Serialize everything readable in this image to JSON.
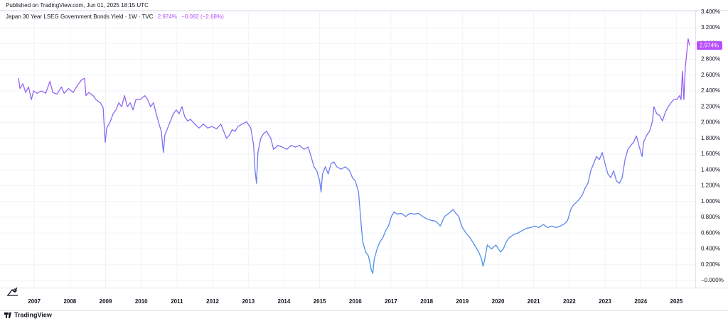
{
  "published": "Published on TradingView.com, Jun 01, 2025 18:15 UTC",
  "brand": "TradingView",
  "chart_data": {
    "type": "line",
    "legend_last": "2.974%",
    "legend_change": "−0.082 (−2.68%)",
    "gradient": [
      "#b84dfb",
      "#3a9ce8"
    ],
    "grid": true,
    "xlim": [
      2006.04,
      2025.53
    ],
    "ylim": [
      -0.09,
      3.425
    ],
    "xticks": [
      2007,
      2008,
      2009,
      2010,
      2011,
      2012,
      2013,
      2014,
      2015,
      2016,
      2017,
      2018,
      2019,
      2020,
      2021,
      2022,
      2023,
      2024,
      2025
    ],
    "yticks": [
      {
        "value": 0,
        "label": "−0.000%"
      },
      {
        "value": 0.2,
        "label": "0.200%"
      },
      {
        "value": 0.4,
        "label": "0.400%"
      },
      {
        "value": 0.6,
        "label": "0.600%"
      },
      {
        "value": 0.8,
        "label": "0.800%"
      },
      {
        "value": 1.0,
        "label": "1.000%"
      },
      {
        "value": 1.2,
        "label": "1.200%"
      },
      {
        "value": 1.4,
        "label": "1.400%"
      },
      {
        "value": 1.6,
        "label": "1.600%"
      },
      {
        "value": 1.8,
        "label": "1.800%"
      },
      {
        "value": 2.0,
        "label": "2.000%"
      },
      {
        "value": 2.2,
        "label": "2.200%"
      },
      {
        "value": 2.4,
        "label": "2.400%"
      },
      {
        "value": 2.6,
        "label": "2.600%"
      },
      {
        "value": 2.8,
        "label": "2.800%"
      },
      {
        "value": 3.0,
        "label": "3.000%"
      },
      {
        "value": 3.2,
        "label": "3.200%"
      },
      {
        "value": 3.4,
        "label": "3.400%"
      }
    ],
    "x": [
      2006.56,
      2006.6,
      2006.68,
      2006.76,
      2006.84,
      2006.92,
      2006.98,
      2007.08,
      2007.2,
      2007.32,
      2007.44,
      2007.52,
      2007.64,
      2007.76,
      2007.84,
      2007.96,
      2008.09,
      2008.21,
      2008.33,
      2008.41,
      2008.45,
      2008.53,
      2008.65,
      2008.73,
      2008.85,
      2008.93,
      2008.97,
      2008.99,
      2009.03,
      2009.13,
      2009.21,
      2009.29,
      2009.37,
      2009.45,
      2009.53,
      2009.61,
      2009.69,
      2009.77,
      2009.85,
      2009.97,
      2010.1,
      2010.18,
      2010.26,
      2010.34,
      2010.42,
      2010.5,
      2010.56,
      2010.62,
      2010.66,
      2010.74,
      2010.82,
      2010.9,
      2010.98,
      2011.06,
      2011.14,
      2011.22,
      2011.3,
      2011.38,
      2011.5,
      2011.62,
      2011.74,
      2011.86,
      2011.98,
      2012.11,
      2012.23,
      2012.31,
      2012.39,
      2012.47,
      2012.55,
      2012.63,
      2012.71,
      2012.83,
      2012.95,
      2013.07,
      2013.15,
      2013.19,
      2013.23,
      2013.27,
      2013.35,
      2013.43,
      2013.51,
      2013.63,
      2013.71,
      2013.83,
      2013.95,
      2014.08,
      2014.2,
      2014.32,
      2014.44,
      2014.56,
      2014.68,
      2014.76,
      2014.84,
      2014.92,
      2015.0,
      2015.04,
      2015.08,
      2015.16,
      2015.24,
      2015.32,
      2015.4,
      2015.48,
      2015.6,
      2015.72,
      2015.84,
      2015.92,
      2016.0,
      2016.09,
      2016.13,
      2016.17,
      2016.21,
      2016.29,
      2016.37,
      2016.41,
      2016.45,
      2016.49,
      2016.53,
      2016.61,
      2016.69,
      2016.77,
      2016.85,
      2016.93,
      2017.01,
      2017.09,
      2017.17,
      2017.29,
      2017.41,
      2017.53,
      2017.65,
      2017.77,
      2017.89,
      2018.01,
      2018.14,
      2018.26,
      2018.38,
      2018.5,
      2018.62,
      2018.74,
      2018.82,
      2018.9,
      2018.98,
      2019.06,
      2019.14,
      2019.22,
      2019.3,
      2019.38,
      2019.46,
      2019.54,
      2019.58,
      2019.62,
      2019.7,
      2019.82,
      2019.94,
      2020.07,
      2020.15,
      2020.23,
      2020.31,
      2020.43,
      2020.55,
      2020.67,
      2020.79,
      2020.91,
      2021.03,
      2021.15,
      2021.27,
      2021.39,
      2021.51,
      2021.63,
      2021.75,
      2021.87,
      2021.95,
      2022.04,
      2022.12,
      2022.2,
      2022.28,
      2022.36,
      2022.44,
      2022.52,
      2022.6,
      2022.68,
      2022.76,
      2022.84,
      2022.92,
      2023.0,
      2023.08,
      2023.16,
      2023.24,
      2023.32,
      2023.4,
      2023.48,
      2023.56,
      2023.64,
      2023.72,
      2023.8,
      2023.88,
      2023.96,
      2024.04,
      2024.08,
      2024.17,
      2024.25,
      2024.33,
      2024.37,
      2024.45,
      2024.53,
      2024.61,
      2024.69,
      2024.77,
      2024.85,
      2024.93,
      2025.01,
      2025.09,
      2025.13,
      2025.17,
      2025.21,
      2025.25,
      2025.29,
      2025.33,
      2025.37
    ],
    "series": [
      {
        "name": "Japan 30 Year LSEG Government Bonds Yield · 1W · TVC",
        "values": [
          2.56,
          2.43,
          2.49,
          2.38,
          2.45,
          2.29,
          2.4,
          2.37,
          2.4,
          2.37,
          2.52,
          2.38,
          2.36,
          2.45,
          2.37,
          2.43,
          2.38,
          2.47,
          2.54,
          2.56,
          2.34,
          2.38,
          2.34,
          2.29,
          2.25,
          2.19,
          1.89,
          1.75,
          1.93,
          2.01,
          2.11,
          2.16,
          2.25,
          2.2,
          2.34,
          2.2,
          2.25,
          2.16,
          2.29,
          2.29,
          2.34,
          2.29,
          2.2,
          2.25,
          2.11,
          1.98,
          1.89,
          1.62,
          1.84,
          1.93,
          2.02,
          2.11,
          2.16,
          2.11,
          2.2,
          2.07,
          2.02,
          2.04,
          1.98,
          1.93,
          1.98,
          1.93,
          1.95,
          1.92,
          1.98,
          1.89,
          1.8,
          1.84,
          1.91,
          1.89,
          1.95,
          1.98,
          2.01,
          1.93,
          1.71,
          1.39,
          1.23,
          1.62,
          1.8,
          1.86,
          1.89,
          1.8,
          1.66,
          1.71,
          1.69,
          1.66,
          1.71,
          1.69,
          1.71,
          1.66,
          1.69,
          1.57,
          1.44,
          1.39,
          1.26,
          1.12,
          1.35,
          1.44,
          1.35,
          1.48,
          1.5,
          1.44,
          1.41,
          1.44,
          1.39,
          1.3,
          1.26,
          1.12,
          0.9,
          0.67,
          0.49,
          0.36,
          0.31,
          0.22,
          0.13,
          0.09,
          0.27,
          0.4,
          0.49,
          0.54,
          0.63,
          0.69,
          0.81,
          0.87,
          0.84,
          0.85,
          0.81,
          0.85,
          0.84,
          0.85,
          0.81,
          0.78,
          0.76,
          0.75,
          0.69,
          0.81,
          0.85,
          0.9,
          0.85,
          0.81,
          0.69,
          0.63,
          0.58,
          0.54,
          0.48,
          0.42,
          0.36,
          0.27,
          0.18,
          0.25,
          0.45,
          0.4,
          0.45,
          0.36,
          0.4,
          0.49,
          0.54,
          0.58,
          0.6,
          0.63,
          0.66,
          0.67,
          0.69,
          0.67,
          0.71,
          0.67,
          0.69,
          0.67,
          0.69,
          0.72,
          0.76,
          0.9,
          0.96,
          0.99,
          1.03,
          1.08,
          1.17,
          1.23,
          1.39,
          1.48,
          1.57,
          1.53,
          1.62,
          1.48,
          1.35,
          1.3,
          1.39,
          1.26,
          1.23,
          1.3,
          1.53,
          1.66,
          1.71,
          1.75,
          1.83,
          1.69,
          1.57,
          1.75,
          1.84,
          1.89,
          2.02,
          2.2,
          2.11,
          2.09,
          2.02,
          2.13,
          2.2,
          2.25,
          2.29,
          2.29,
          2.34,
          2.29,
          2.65,
          2.29,
          2.7,
          2.88,
          3.06,
          2.974
        ]
      }
    ]
  }
}
